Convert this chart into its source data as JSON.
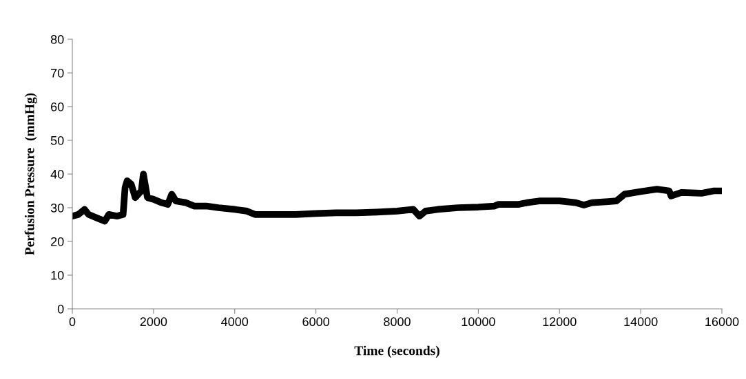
{
  "chart_data": {
    "type": "line",
    "xlabel": "Time (seconds)",
    "ylabel": "Perfusion Pressure  (mmHg)",
    "x": [
      0,
      150,
      300,
      400,
      600,
      800,
      900,
      1100,
      1250,
      1300,
      1350,
      1450,
      1550,
      1700,
      1750,
      1850,
      2000,
      2200,
      2350,
      2450,
      2550,
      2800,
      3000,
      3300,
      3600,
      4000,
      4300,
      4500,
      5000,
      5500,
      6000,
      6500,
      7000,
      7500,
      8000,
      8400,
      8550,
      8700,
      9000,
      9500,
      10000,
      10400,
      10500,
      11000,
      11200,
      11500,
      12000,
      12400,
      12600,
      12800,
      13200,
      13400,
      13600,
      14000,
      14400,
      14700,
      14750,
      15000,
      15500,
      15800,
      15950
    ],
    "series": [
      {
        "color": "#000000",
        "values": [
          27.5,
          28,
          29.5,
          28,
          27,
          26,
          28,
          27.5,
          28,
          36,
          38,
          37,
          33,
          35,
          40,
          33,
          32.5,
          31.5,
          31,
          34,
          32,
          31.5,
          30.5,
          30.5,
          30,
          29.5,
          29,
          28,
          28,
          28,
          28.3,
          28.5,
          28.5,
          28.7,
          29,
          29.5,
          27.5,
          29,
          29.5,
          30,
          30.2,
          30.5,
          31,
          31,
          31.5,
          32,
          32,
          31.5,
          30.8,
          31.5,
          31.8,
          32,
          34,
          34.8,
          35.5,
          35,
          33.5,
          34.5,
          34.3,
          35,
          35
        ]
      }
    ],
    "xlim": [
      0,
      16000
    ],
    "xticks": [
      0,
      2000,
      4000,
      6000,
      8000,
      10000,
      12000,
      14000,
      16000
    ],
    "ylim": [
      0,
      80
    ],
    "yticks": [
      0,
      10,
      20,
      30,
      40,
      50,
      60,
      70,
      80
    ],
    "grid": false,
    "legend": false,
    "marker": "none",
    "line_style": "solid"
  }
}
